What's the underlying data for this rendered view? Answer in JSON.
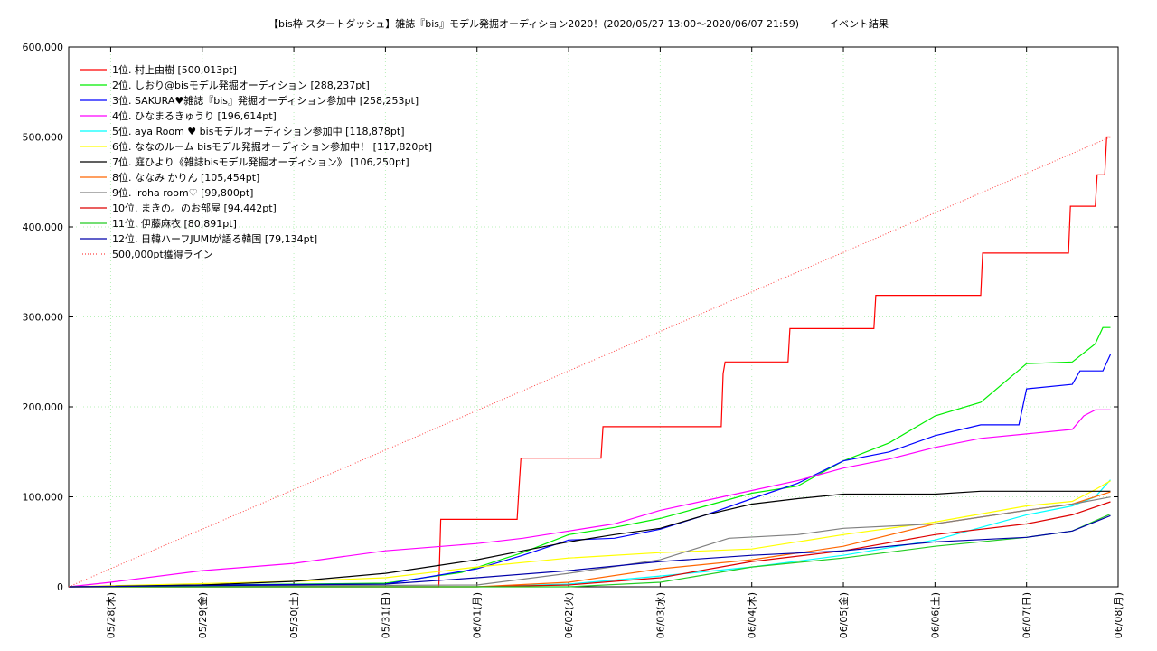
{
  "chart_data": {
    "type": "line",
    "title": "【bis枠 スタートダッシュ】雑誌『bis』モデル発掘オーディション2020！(2020/05/27 13:00〜2020/06/07 21:59)　　　イベント結果",
    "xlabel": "",
    "ylabel": "",
    "grid": true,
    "legend_position": "top-left",
    "xlim": [
      "2020-05-27 13:00",
      "2020-06-08 00:00"
    ],
    "ylim": [
      0,
      600000
    ],
    "x_ticks": [
      "05/28(木)",
      "05/29(金)",
      "05/30(土)",
      "05/31(日)",
      "06/01(月)",
      "06/02(火)",
      "06/03(水)",
      "06/04(木)",
      "06/05(金)",
      "06/06(土)",
      "06/07(日)",
      "06/08(月)"
    ],
    "y_ticks": [
      "0",
      "100,000",
      "200,000",
      "300,000",
      "400,000",
      "500,000",
      "600,000"
    ],
    "series": [
      {
        "name": "1位. 村上由樹 [500,013pt]",
        "color": "#ff0000",
        "points": [
          [
            "2020-05-27 13:00",
            0
          ],
          [
            "2020-05-31 14:00",
            0
          ],
          [
            "2020-05-31 14:30",
            75000
          ],
          [
            "2020-06-01 10:30",
            75000
          ],
          [
            "2020-06-01 11:00",
            110000
          ],
          [
            "2020-06-01 11:30",
            143000
          ],
          [
            "2020-06-02 08:30",
            143000
          ],
          [
            "2020-06-02 09:00",
            178000
          ],
          [
            "2020-06-03 16:00",
            178000
          ],
          [
            "2020-06-03 16:30",
            237000
          ],
          [
            "2020-06-03 17:00",
            250000
          ],
          [
            "2020-06-04 09:30",
            250000
          ],
          [
            "2020-06-04 10:00",
            287000
          ],
          [
            "2020-06-05 08:00",
            287000
          ],
          [
            "2020-06-05 08:30",
            324000
          ],
          [
            "2020-06-06 12:00",
            324000
          ],
          [
            "2020-06-06 12:30",
            371000
          ],
          [
            "2020-06-07 11:00",
            371000
          ],
          [
            "2020-06-07 11:30",
            423000
          ],
          [
            "2020-06-07 18:00",
            423000
          ],
          [
            "2020-06-07 18:30",
            458000
          ],
          [
            "2020-06-07 20:30",
            458000
          ],
          [
            "2020-06-07 21:00",
            500013
          ],
          [
            "2020-06-07 21:59",
            500013
          ]
        ]
      },
      {
        "name": "2位. しおり@bisモデル発掘オーディション [288,237pt]",
        "color": "#00ee00",
        "points": [
          [
            "2020-05-27 13:00",
            0
          ],
          [
            "2020-05-29 00:00",
            2000
          ],
          [
            "2020-05-31 00:00",
            4000
          ],
          [
            "2020-05-31 20:00",
            16000
          ],
          [
            "2020-06-01 12:00",
            38000
          ],
          [
            "2020-06-02 00:00",
            58000
          ],
          [
            "2020-06-02 12:00",
            66000
          ],
          [
            "2020-06-03 00:00",
            76000
          ],
          [
            "2020-06-03 12:00",
            90000
          ],
          [
            "2020-06-04 00:00",
            104000
          ],
          [
            "2020-06-04 12:00",
            112000
          ],
          [
            "2020-06-05 00:00",
            140000
          ],
          [
            "2020-06-05 12:00",
            160000
          ],
          [
            "2020-06-06 00:00",
            190000
          ],
          [
            "2020-06-06 12:00",
            205000
          ],
          [
            "2020-06-07 00:00",
            248000
          ],
          [
            "2020-06-07 12:00",
            250000
          ],
          [
            "2020-06-07 18:00",
            270000
          ],
          [
            "2020-06-07 20:00",
            288237
          ],
          [
            "2020-06-07 21:59",
            288237
          ]
        ]
      },
      {
        "name": "3位. SAKURA♥雑誌『bis』発掘オーディション参加中 [258,253pt]",
        "color": "#0000ff",
        "points": [
          [
            "2020-05-27 13:00",
            0
          ],
          [
            "2020-05-29 00:00",
            2000
          ],
          [
            "2020-05-31 00:00",
            3000
          ],
          [
            "2020-06-01 00:00",
            20000
          ],
          [
            "2020-06-01 12:00",
            35000
          ],
          [
            "2020-06-02 00:00",
            52000
          ],
          [
            "2020-06-02 12:00",
            54000
          ],
          [
            "2020-06-03 00:00",
            64000
          ],
          [
            "2020-06-03 12:00",
            80000
          ],
          [
            "2020-06-04 00:00",
            98000
          ],
          [
            "2020-06-04 12:00",
            115000
          ],
          [
            "2020-06-05 00:00",
            140000
          ],
          [
            "2020-06-05 12:00",
            150000
          ],
          [
            "2020-06-06 00:00",
            168000
          ],
          [
            "2020-06-06 12:00",
            180000
          ],
          [
            "2020-06-06 22:00",
            180000
          ],
          [
            "2020-06-07 00:00",
            220000
          ],
          [
            "2020-06-07 12:00",
            225000
          ],
          [
            "2020-06-07 14:00",
            240000
          ],
          [
            "2020-06-07 20:00",
            240000
          ],
          [
            "2020-06-07 21:59",
            258253
          ]
        ]
      },
      {
        "name": "4位. ひなまるきゅうり [196,614pt]",
        "color": "#ff00ff",
        "points": [
          [
            "2020-05-27 13:00",
            0
          ],
          [
            "2020-05-28 00:00",
            5000
          ],
          [
            "2020-05-29 00:00",
            18000
          ],
          [
            "2020-05-30 00:00",
            26000
          ],
          [
            "2020-05-31 00:00",
            40000
          ],
          [
            "2020-06-01 00:00",
            48000
          ],
          [
            "2020-06-01 12:00",
            54000
          ],
          [
            "2020-06-02 00:00",
            62000
          ],
          [
            "2020-06-02 12:00",
            70000
          ],
          [
            "2020-06-03 00:00",
            85000
          ],
          [
            "2020-06-03 12:00",
            96000
          ],
          [
            "2020-06-04 00:00",
            107000
          ],
          [
            "2020-06-04 12:00",
            118000
          ],
          [
            "2020-06-05 00:00",
            132000
          ],
          [
            "2020-06-05 12:00",
            142000
          ],
          [
            "2020-06-06 00:00",
            155000
          ],
          [
            "2020-06-06 12:00",
            165000
          ],
          [
            "2020-06-07 00:00",
            170000
          ],
          [
            "2020-06-07 12:00",
            175000
          ],
          [
            "2020-06-07 15:00",
            190000
          ],
          [
            "2020-06-07 18:00",
            196614
          ],
          [
            "2020-06-07 21:59",
            196614
          ]
        ]
      },
      {
        "name": "5位. aya Room ♥ bisモデルオーディション参加中 [118,878pt]",
        "color": "#00ffff",
        "points": [
          [
            "2020-05-27 13:00",
            0
          ],
          [
            "2020-06-01 00:00",
            0
          ],
          [
            "2020-06-02 00:00",
            3000
          ],
          [
            "2020-06-03 00:00",
            12000
          ],
          [
            "2020-06-04 00:00",
            22000
          ],
          [
            "2020-06-05 00:00",
            35000
          ],
          [
            "2020-06-06 00:00",
            52000
          ],
          [
            "2020-06-07 00:00",
            80000
          ],
          [
            "2020-06-07 12:00",
            90000
          ],
          [
            "2020-06-07 18:00",
            100000
          ],
          [
            "2020-06-07 21:59",
            118878
          ]
        ]
      },
      {
        "name": "6位. ななのルーム bisモデル発掘オーディション参加中！ [117,820pt]",
        "color": "#ffff00",
        "points": [
          [
            "2020-05-27 13:00",
            0
          ],
          [
            "2020-05-30 00:00",
            6000
          ],
          [
            "2020-05-31 00:00",
            10000
          ],
          [
            "2020-06-01 00:00",
            22000
          ],
          [
            "2020-06-02 00:00",
            32000
          ],
          [
            "2020-06-03 00:00",
            38000
          ],
          [
            "2020-06-04 00:00",
            42000
          ],
          [
            "2020-06-05 00:00",
            58000
          ],
          [
            "2020-06-06 00:00",
            72000
          ],
          [
            "2020-06-07 00:00",
            90000
          ],
          [
            "2020-06-07 12:00",
            95000
          ],
          [
            "2020-06-07 18:00",
            108000
          ],
          [
            "2020-06-07 21:59",
            117820
          ]
        ]
      },
      {
        "name": "7位. 庭ひより《雑誌bisモデル発掘オーディション》 [106,250pt]",
        "color": "#000000",
        "points": [
          [
            "2020-05-27 13:00",
            0
          ],
          [
            "2020-05-29 00:00",
            2000
          ],
          [
            "2020-05-30 00:00",
            6000
          ],
          [
            "2020-05-31 00:00",
            15000
          ],
          [
            "2020-06-01 00:00",
            30000
          ],
          [
            "2020-06-01 12:00",
            40000
          ],
          [
            "2020-06-02 00:00",
            50000
          ],
          [
            "2020-06-02 12:00",
            58000
          ],
          [
            "2020-06-03 00:00",
            65000
          ],
          [
            "2020-06-03 12:00",
            80000
          ],
          [
            "2020-06-04 00:00",
            92000
          ],
          [
            "2020-06-04 12:00",
            98000
          ],
          [
            "2020-06-05 00:00",
            103000
          ],
          [
            "2020-06-06 00:00",
            103000
          ],
          [
            "2020-06-06 12:00",
            106250
          ],
          [
            "2020-06-07 21:59",
            106250
          ]
        ]
      },
      {
        "name": "8位. ななみ かりん [105,454pt]",
        "color": "#ff6600",
        "points": [
          [
            "2020-05-27 13:00",
            0
          ],
          [
            "2020-06-01 00:00",
            0
          ],
          [
            "2020-06-02 00:00",
            5000
          ],
          [
            "2020-06-03 00:00",
            20000
          ],
          [
            "2020-06-04 00:00",
            30000
          ],
          [
            "2020-06-05 00:00",
            45000
          ],
          [
            "2020-06-06 00:00",
            70000
          ],
          [
            "2020-06-07 00:00",
            85000
          ],
          [
            "2020-06-07 12:00",
            92000
          ],
          [
            "2020-06-07 21:59",
            105454
          ]
        ]
      },
      {
        "name": "9位. iroha room♡ [99,800pt]",
        "color": "#808080",
        "points": [
          [
            "2020-05-27 13:00",
            0
          ],
          [
            "2020-06-01 00:00",
            2000
          ],
          [
            "2020-06-02 00:00",
            15000
          ],
          [
            "2020-06-03 00:00",
            30000
          ],
          [
            "2020-06-03 18:00",
            54000
          ],
          [
            "2020-06-04 12:00",
            58000
          ],
          [
            "2020-06-05 00:00",
            65000
          ],
          [
            "2020-06-06 00:00",
            70000
          ],
          [
            "2020-06-07 00:00",
            85000
          ],
          [
            "2020-06-07 12:00",
            92000
          ],
          [
            "2020-06-07 21:59",
            99800
          ]
        ]
      },
      {
        "name": "10位. まきの。のお部屋 [94,442pt]",
        "color": "#dd0000",
        "points": [
          [
            "2020-05-27 13:00",
            0
          ],
          [
            "2020-06-01 00:00",
            0
          ],
          [
            "2020-06-02 00:00",
            2000
          ],
          [
            "2020-06-03 00:00",
            10000
          ],
          [
            "2020-06-04 00:00",
            28000
          ],
          [
            "2020-06-05 00:00",
            40000
          ],
          [
            "2020-06-06 00:00",
            58000
          ],
          [
            "2020-06-07 00:00",
            70000
          ],
          [
            "2020-06-07 12:00",
            80000
          ],
          [
            "2020-06-07 21:59",
            94442
          ]
        ]
      },
      {
        "name": "11位. 伊藤麻衣 [80,891pt]",
        "color": "#22cc22",
        "points": [
          [
            "2020-05-27 13:00",
            0
          ],
          [
            "2020-06-02 00:00",
            0
          ],
          [
            "2020-06-03 00:00",
            5000
          ],
          [
            "2020-06-04 00:00",
            22000
          ],
          [
            "2020-06-05 00:00",
            32000
          ],
          [
            "2020-06-06 00:00",
            45000
          ],
          [
            "2020-06-07 00:00",
            55000
          ],
          [
            "2020-06-07 12:00",
            62000
          ],
          [
            "2020-06-07 21:59",
            80891
          ]
        ]
      },
      {
        "name": "12位. 日韓ハーフJUMIが語る韓国 [79,134pt]",
        "color": "#0000aa",
        "points": [
          [
            "2020-05-27 13:00",
            0
          ],
          [
            "2020-05-31 00:00",
            3000
          ],
          [
            "2020-06-01 00:00",
            10000
          ],
          [
            "2020-06-02 00:00",
            18000
          ],
          [
            "2020-06-03 00:00",
            28000
          ],
          [
            "2020-06-04 00:00",
            35000
          ],
          [
            "2020-06-05 00:00",
            40000
          ],
          [
            "2020-06-06 00:00",
            50000
          ],
          [
            "2020-06-07 00:00",
            55000
          ],
          [
            "2020-06-07 12:00",
            62000
          ],
          [
            "2020-06-07 21:59",
            79134
          ]
        ]
      },
      {
        "name": "500,000pt獲得ライン",
        "color": "#ff4444",
        "dashed": true,
        "points": [
          [
            "2020-05-27 13:00",
            0
          ],
          [
            "2020-06-07 21:59",
            500000
          ]
        ]
      }
    ]
  }
}
